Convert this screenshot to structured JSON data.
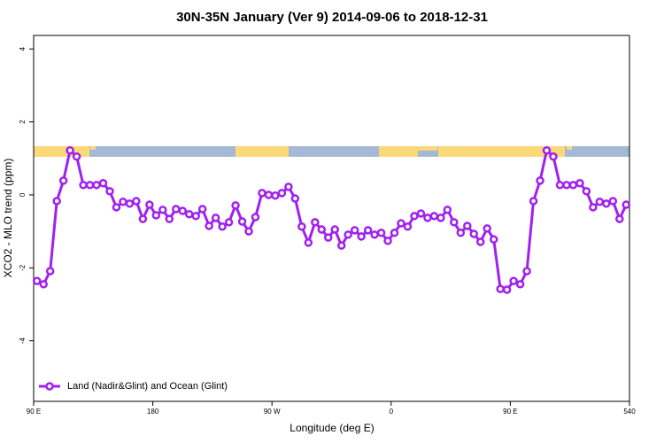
{
  "chart_data": {
    "type": "line",
    "title": "30N-35N January (Ver 9)   2014-09-06 to 2018-12-31",
    "x_label": "Longitude (deg E)",
    "y_label": "XCO2 - MLO trend (ppm)",
    "x": [
      92.5,
      97.5,
      102.5,
      107.5,
      112.5,
      117.5,
      122.5,
      127.5,
      132.5,
      137.5,
      142.5,
      147.5,
      152.5,
      157.5,
      162.5,
      167.5,
      172.5,
      177.5,
      182.5,
      187.5,
      192.5,
      197.5,
      202.5,
      207.5,
      212.5,
      217.5,
      222.5,
      227.5,
      232.5,
      237.5,
      242.5,
      247.5,
      252.5,
      257.5,
      262.5,
      267.5,
      272.5,
      277.5,
      282.5,
      287.5,
      292.5,
      297.5,
      302.5,
      307.5,
      312.5,
      317.5,
      322.5,
      327.5,
      332.5,
      337.5,
      342.5,
      347.5,
      352.5,
      357.5,
      362.5,
      367.5,
      372.5,
      377.5,
      382.5,
      387.5,
      392.5,
      397.5,
      402.5,
      407.5,
      412.5,
      417.5,
      422.5,
      427.5,
      432.5,
      437.5,
      442.5,
      447.5,
      452.5,
      457.5,
      462.5,
      467.5,
      472.5,
      477.5,
      482.5,
      487.5,
      492.5,
      497.5,
      502.5,
      507.5,
      512.5,
      517.5,
      522.5,
      527.5,
      532.5,
      537.5
    ],
    "series": [
      {
        "name": "Land (Nadir&Glint) and Ocean (Glint)",
        "color": "#a020f0",
        "values": [
          -2.36,
          -2.45,
          -2.09,
          -0.17,
          0.39,
          1.22,
          1.05,
          0.27,
          0.27,
          0.27,
          0.32,
          0.1,
          -0.34,
          -0.19,
          -0.24,
          -0.17,
          -0.66,
          -0.27,
          -0.56,
          -0.41,
          -0.66,
          -0.39,
          -0.44,
          -0.53,
          -0.58,
          -0.39,
          -0.85,
          -0.63,
          -0.87,
          -0.75,
          -0.29,
          -0.73,
          -1.0,
          -0.61,
          0.05,
          0.0,
          -0.02,
          0.05,
          0.22,
          -0.1,
          -0.87,
          -1.31,
          -0.75,
          -0.95,
          -1.17,
          -0.95,
          -1.39,
          -1.09,
          -0.97,
          -1.14,
          -0.97,
          -1.09,
          -1.04,
          -1.26,
          -1.04,
          -0.78,
          -0.87,
          -0.58,
          -0.51,
          -0.63,
          -0.58,
          -0.63,
          -0.41,
          -0.75,
          -1.04,
          -0.85,
          -1.07,
          -1.29,
          -0.92,
          -1.22,
          -2.58,
          -2.6,
          -2.36,
          -2.45,
          -2.09,
          -0.17,
          0.39,
          1.22,
          1.05,
          0.27,
          0.27,
          0.27,
          0.32,
          0.1,
          -0.34,
          -0.19,
          -0.24,
          -0.17,
          -0.66,
          -0.27
        ]
      }
    ],
    "xlim": [
      90,
      540
    ],
    "xticks": [
      {
        "value": 90,
        "label": "90 E"
      },
      180,
      {
        "value": 270,
        "label": "90 W"
      },
      {
        "value": 360,
        "label": "0"
      },
      {
        "value": 450,
        "label": "90 E"
      },
      540
    ],
    "ylim": [
      -5.66,
      4.37
    ],
    "yticks": [
      -4,
      -2,
      0,
      2,
      4
    ],
    "legend": "bottom-left"
  }
}
